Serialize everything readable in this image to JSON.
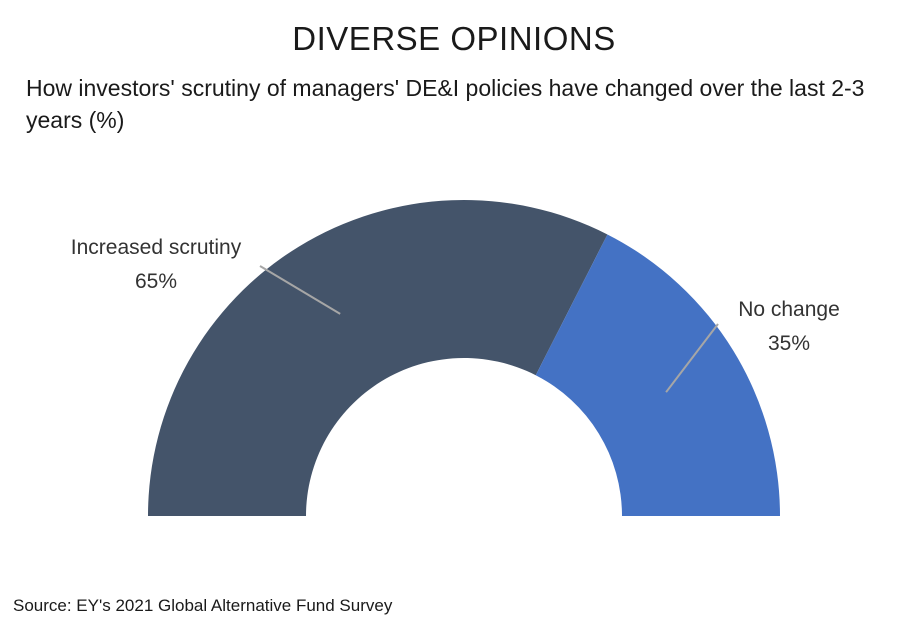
{
  "title": "DIVERSE OPINIONS",
  "subtitle": "How investors' scrutiny of managers' DE&I policies have changed over the last 2-3 years (%)",
  "source": "Source: EY's 2021 Global Alternative Fund Survey",
  "chart_data": {
    "type": "pie",
    "variant": "half-donut",
    "title": "DIVERSE OPINIONS",
    "subtitle": "How investors' scrutiny of managers' DE&I policies have changed over the last 2-3 years (%)",
    "unit": "%",
    "slices": [
      {
        "label": "Increased scrutiny",
        "value": 65,
        "value_label": "65%",
        "color": "#44546a"
      },
      {
        "label": "No change",
        "value": 35,
        "value_label": "35%",
        "color": "#4472c4"
      }
    ],
    "legend": "none",
    "data_labels": "outside-with-leader-lines"
  }
}
